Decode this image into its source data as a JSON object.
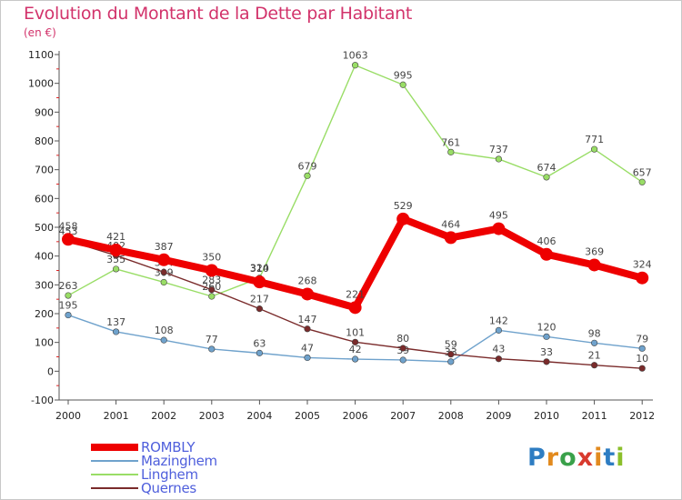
{
  "header": {
    "title": "Evolution du Montant de la Dette par Habitant",
    "subtitle": "(en €)"
  },
  "logo": {
    "letters": [
      "P",
      "r",
      "o",
      "x",
      "i",
      "t",
      "i"
    ],
    "colors": [
      "#2e7dc2",
      "#e28a1e",
      "#3aa14a",
      "#d83a2e",
      "#e28a1e",
      "#2e7dc2",
      "#8bbf2a"
    ]
  },
  "chart_data": {
    "type": "line",
    "title": "Evolution du Montant de la Dette par Habitant",
    "ylabel": "(en €)",
    "x": [
      "2000",
      "2001",
      "2002",
      "2003",
      "2004",
      "2005",
      "2006",
      "2007",
      "2008",
      "2009",
      "2010",
      "2011",
      "2012"
    ],
    "ylim": [
      -100,
      1100
    ],
    "yticks": [
      -100,
      0,
      100,
      200,
      300,
      400,
      500,
      600,
      700,
      800,
      900,
      1000,
      1100
    ],
    "grid": false,
    "legend_position": "bottom-left",
    "series": [
      {
        "name": "ROMBLY",
        "color": "#ee0000",
        "values": [
          458,
          421,
          387,
          350,
          310,
          268,
          221,
          529,
          464,
          495,
          406,
          369,
          324
        ]
      },
      {
        "name": "Mazinghem",
        "color": "#6fa2cc",
        "values": [
          195,
          137,
          108,
          77,
          63,
          47,
          42,
          39,
          33,
          142,
          120,
          98,
          79
        ]
      },
      {
        "name": "Linghem",
        "color": "#99dd66",
        "values": [
          263,
          355,
          309,
          260,
          324,
          679,
          1063,
          995,
          761,
          737,
          674,
          771,
          657
        ]
      },
      {
        "name": "Quernes",
        "color": "#7a2b2b",
        "values": [
          453,
          402,
          344,
          283,
          217,
          147,
          101,
          80,
          59,
          43,
          33,
          21,
          10
        ]
      }
    ]
  }
}
